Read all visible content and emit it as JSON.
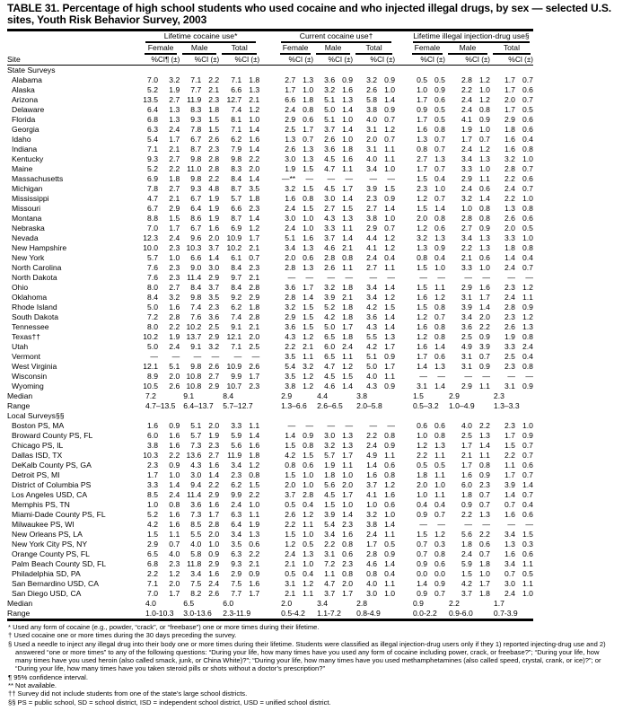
{
  "title": "TABLE 31. Percentage of high school students who used cocaine and who injected illegal drugs, by sex — selected U.S. sites, Youth Risk Behavior Survey, 2003",
  "header": {
    "site": "Site",
    "groups": [
      "Lifetime cocaine use*",
      "Current cocaine use†",
      "Lifetime illegal injection-drug use§"
    ],
    "sexes": [
      "Female",
      "Male",
      "Total"
    ],
    "pct": "%",
    "ci_first": "CI¶ (±)",
    "ci": "CI (±)"
  },
  "state_label": "State Surveys",
  "states": [
    {
      "site": "Alabama",
      "v": [
        "7.0",
        "3.2",
        "7.1",
        "2.2",
        "7.1",
        "1.8",
        "2.7",
        "1.3",
        "3.6",
        "0.9",
        "3.2",
        "0.9",
        "0.5",
        "0.5",
        "2.8",
        "1.2",
        "1.7",
        "0.7"
      ]
    },
    {
      "site": "Alaska",
      "v": [
        "5.2",
        "1.9",
        "7.7",
        "2.1",
        "6.6",
        "1.3",
        "1.7",
        "1.0",
        "3.2",
        "1.6",
        "2.6",
        "1.0",
        "1.0",
        "0.9",
        "2.2",
        "1.0",
        "1.7",
        "0.6"
      ]
    },
    {
      "site": "Arizona",
      "v": [
        "13.5",
        "2.7",
        "11.9",
        "2.3",
        "12.7",
        "2.1",
        "6.6",
        "1.8",
        "5.1",
        "1.3",
        "5.8",
        "1.4",
        "1.7",
        "0.6",
        "2.4",
        "1.2",
        "2.0",
        "0.7"
      ]
    },
    {
      "site": "Delaware",
      "v": [
        "6.4",
        "1.3",
        "8.3",
        "1.8",
        "7.4",
        "1.2",
        "2.4",
        "0.8",
        "5.0",
        "1.4",
        "3.8",
        "0.9",
        "0.9",
        "0.5",
        "2.4",
        "0.8",
        "1.7",
        "0.5"
      ]
    },
    {
      "site": "Florida",
      "v": [
        "6.8",
        "1.3",
        "9.3",
        "1.5",
        "8.1",
        "1.0",
        "2.9",
        "0.6",
        "5.1",
        "1.0",
        "4.0",
        "0.7",
        "1.7",
        "0.5",
        "4.1",
        "0.9",
        "2.9",
        "0.6"
      ]
    },
    {
      "site": "Georgia",
      "v": [
        "6.3",
        "2.4",
        "7.8",
        "1.5",
        "7.1",
        "1.4",
        "2.5",
        "1.7",
        "3.7",
        "1.4",
        "3.1",
        "1.2",
        "1.6",
        "0.8",
        "1.9",
        "1.0",
        "1.8",
        "0.6"
      ]
    },
    {
      "site": "Idaho",
      "v": [
        "5.4",
        "1.7",
        "6.7",
        "2.6",
        "6.2",
        "1.6",
        "1.3",
        "0.7",
        "2.6",
        "1.0",
        "2.0",
        "0.7",
        "1.3",
        "0.7",
        "1.7",
        "0.7",
        "1.6",
        "0.4"
      ]
    },
    {
      "site": "Indiana",
      "v": [
        "7.1",
        "2.1",
        "8.7",
        "2.3",
        "7.9",
        "1.4",
        "2.6",
        "1.3",
        "3.6",
        "1.8",
        "3.1",
        "1.1",
        "0.8",
        "0.7",
        "2.4",
        "1.2",
        "1.6",
        "0.8"
      ]
    },
    {
      "site": "Kentucky",
      "v": [
        "9.3",
        "2.7",
        "9.8",
        "2.8",
        "9.8",
        "2.2",
        "3.0",
        "1.3",
        "4.5",
        "1.6",
        "4.0",
        "1.1",
        "2.7",
        "1.3",
        "3.4",
        "1.3",
        "3.2",
        "1.0"
      ]
    },
    {
      "site": "Maine",
      "v": [
        "5.2",
        "2.2",
        "11.0",
        "2.8",
        "8.3",
        "2.0",
        "1.9",
        "1.5",
        "4.7",
        "1.1",
        "3.4",
        "1.0",
        "1.7",
        "0.7",
        "3.3",
        "1.0",
        "2.8",
        "0.7"
      ]
    },
    {
      "site": "Massachusetts",
      "v": [
        "6.9",
        "1.8",
        "9.8",
        "2.2",
        "8.4",
        "1.4",
        "—**",
        "—",
        "—",
        "—",
        "—",
        "—",
        "1.5",
        "0.4",
        "2.9",
        "1.1",
        "2.2",
        "0.6"
      ]
    },
    {
      "site": "Michigan",
      "v": [
        "7.8",
        "2.7",
        "9.3",
        "4.8",
        "8.7",
        "3.5",
        "3.2",
        "1.5",
        "4.5",
        "1.7",
        "3.9",
        "1.5",
        "2.3",
        "1.0",
        "2.4",
        "0.6",
        "2.4",
        "0.7"
      ]
    },
    {
      "site": "Mississippi",
      "v": [
        "4.7",
        "2.1",
        "6.7",
        "1.9",
        "5.7",
        "1.8",
        "1.6",
        "0.8",
        "3.0",
        "1.4",
        "2.3",
        "0.9",
        "1.2",
        "0.7",
        "3.2",
        "1.4",
        "2.2",
        "1.0"
      ]
    },
    {
      "site": "Missouri",
      "v": [
        "6.7",
        "2.9",
        "6.4",
        "1.9",
        "6.6",
        "2.3",
        "2.4",
        "1.5",
        "2.7",
        "1.5",
        "2.7",
        "1.4",
        "1.5",
        "1.4",
        "1.0",
        "0.8",
        "1.3",
        "0.8"
      ]
    },
    {
      "site": "Montana",
      "v": [
        "8.8",
        "1.5",
        "8.6",
        "1.9",
        "8.7",
        "1.4",
        "3.0",
        "1.0",
        "4.3",
        "1.3",
        "3.8",
        "1.0",
        "2.0",
        "0.8",
        "2.8",
        "0.8",
        "2.6",
        "0.6"
      ]
    },
    {
      "site": "Nebraska",
      "v": [
        "7.0",
        "1.7",
        "6.7",
        "1.6",
        "6.9",
        "1.2",
        "2.4",
        "1.0",
        "3.3",
        "1.1",
        "2.9",
        "0.7",
        "1.2",
        "0.6",
        "2.7",
        "0.9",
        "2.0",
        "0.5"
      ]
    },
    {
      "site": "Nevada",
      "v": [
        "12.3",
        "2.4",
        "9.6",
        "2.0",
        "10.9",
        "1.7",
        "5.1",
        "1.6",
        "3.7",
        "1.4",
        "4.4",
        "1.2",
        "3.2",
        "1.3",
        "3.4",
        "1.3",
        "3.3",
        "1.0"
      ]
    },
    {
      "site": "New Hampshire",
      "v": [
        "10.0",
        "2.3",
        "10.3",
        "3.7",
        "10.2",
        "2.1",
        "3.4",
        "1.3",
        "4.6",
        "2.1",
        "4.1",
        "1.2",
        "1.3",
        "0.9",
        "2.2",
        "1.3",
        "1.8",
        "0.8"
      ]
    },
    {
      "site": "New York",
      "v": [
        "5.7",
        "1.0",
        "6.6",
        "1.4",
        "6.1",
        "0.7",
        "2.0",
        "0.6",
        "2.8",
        "0.8",
        "2.4",
        "0.4",
        "0.8",
        "0.4",
        "2.1",
        "0.6",
        "1.4",
        "0.4"
      ]
    },
    {
      "site": "North Carolina",
      "v": [
        "7.6",
        "2.3",
        "9.0",
        "3.0",
        "8.4",
        "2.3",
        "2.8",
        "1.3",
        "2.6",
        "1.1",
        "2.7",
        "1.1",
        "1.5",
        "1.0",
        "3.3",
        "1.0",
        "2.4",
        "0.7"
      ]
    },
    {
      "site": "North Dakota",
      "v": [
        "7.6",
        "2.3",
        "11.4",
        "2.9",
        "9.7",
        "2.1",
        "—",
        "—",
        "—",
        "—",
        "—",
        "—",
        "—",
        "—",
        "—",
        "—",
        "—",
        "—"
      ]
    },
    {
      "site": "Ohio",
      "v": [
        "8.0",
        "2.7",
        "8.4",
        "3.7",
        "8.4",
        "2.8",
        "3.6",
        "1.7",
        "3.2",
        "1.8",
        "3.4",
        "1.4",
        "1.5",
        "1.1",
        "2.9",
        "1.6",
        "2.3",
        "1.2"
      ]
    },
    {
      "site": "Oklahoma",
      "v": [
        "8.4",
        "3.2",
        "9.8",
        "3.5",
        "9.2",
        "2.9",
        "2.8",
        "1.4",
        "3.9",
        "2.1",
        "3.4",
        "1.2",
        "1.6",
        "1.2",
        "3.1",
        "1.7",
        "2.4",
        "1.1"
      ]
    },
    {
      "site": "Rhode Island",
      "v": [
        "5.0",
        "1.6",
        "7.4",
        "2.3",
        "6.2",
        "1.8",
        "3.2",
        "1.5",
        "5.2",
        "1.8",
        "4.2",
        "1.5",
        "1.5",
        "0.8",
        "3.9",
        "1.4",
        "2.8",
        "0.9"
      ]
    },
    {
      "site": "South Dakota",
      "v": [
        "7.2",
        "2.8",
        "7.6",
        "3.6",
        "7.4",
        "2.8",
        "2.9",
        "1.5",
        "4.2",
        "1.8",
        "3.6",
        "1.4",
        "1.2",
        "0.7",
        "3.4",
        "2.0",
        "2.3",
        "1.2"
      ]
    },
    {
      "site": "Tennessee",
      "v": [
        "8.0",
        "2.2",
        "10.2",
        "2.5",
        "9.1",
        "2.1",
        "3.6",
        "1.5",
        "5.0",
        "1.7",
        "4.3",
        "1.4",
        "1.6",
        "0.8",
        "3.6",
        "2.2",
        "2.6",
        "1.3"
      ]
    },
    {
      "site": "Texas††",
      "v": [
        "10.2",
        "1.9",
        "13.7",
        "2.9",
        "12.1",
        "2.0",
        "4.3",
        "1.2",
        "6.5",
        "1.8",
        "5.5",
        "1.3",
        "1.2",
        "0.8",
        "2.5",
        "0.9",
        "1.9",
        "0.8"
      ]
    },
    {
      "site": "Utah",
      "v": [
        "5.0",
        "2.4",
        "9.1",
        "3.2",
        "7.1",
        "2.5",
        "2.2",
        "2.1",
        "6.0",
        "2.4",
        "4.2",
        "1.7",
        "1.6",
        "1.4",
        "4.9",
        "3.9",
        "3.3",
        "2.4"
      ]
    },
    {
      "site": "Vermont",
      "v": [
        "—",
        "—",
        "—",
        "—",
        "—",
        "—",
        "3.5",
        "1.1",
        "6.5",
        "1.1",
        "5.1",
        "0.9",
        "1.7",
        "0.6",
        "3.1",
        "0.7",
        "2.5",
        "0.4"
      ]
    },
    {
      "site": "West Virginia",
      "v": [
        "12.1",
        "5.1",
        "9.8",
        "2.6",
        "10.9",
        "2.6",
        "5.4",
        "3.2",
        "4.7",
        "1.2",
        "5.0",
        "1.7",
        "1.4",
        "1.3",
        "3.1",
        "0.9",
        "2.3",
        "0.8"
      ]
    },
    {
      "site": "Wisconsin",
      "v": [
        "8.9",
        "2.0",
        "10.8",
        "2.7",
        "9.9",
        "1.7",
        "3.5",
        "1.2",
        "4.5",
        "1.5",
        "4.0",
        "1.1",
        "—",
        "—",
        "—",
        "—",
        "—",
        "—"
      ]
    },
    {
      "site": "Wyoming",
      "v": [
        "10.5",
        "2.6",
        "10.8",
        "2.9",
        "10.7",
        "2.3",
        "3.8",
        "1.2",
        "4.6",
        "1.4",
        "4.3",
        "0.9",
        "3.1",
        "1.4",
        "2.9",
        "1.1",
        "3.1",
        "0.9"
      ]
    }
  ],
  "state_median": {
    "label": "Median",
    "v": [
      "7.2",
      "9.1",
      "8.4",
      "2.9",
      "4.4",
      "3.8",
      "1.5",
      "2.9",
      "2.3"
    ]
  },
  "state_range": {
    "label": "Range",
    "v": [
      "4.7–13.5",
      "6.4–13.7",
      "5.7–12.7",
      "1.3–6.6",
      "2.6–6.5",
      "2.0–5.8",
      "0.5–3.2",
      "1.0–4.9",
      "1.3–3.3"
    ]
  },
  "local_label": "Local Surveys§§",
  "locals": [
    {
      "site": "Boston PS, MA",
      "v": [
        "1.6",
        "0.9",
        "5.1",
        "2.0",
        "3.3",
        "1.1",
        "—",
        "—",
        "—",
        "—",
        "—",
        "—",
        "0.6",
        "0.6",
        "4.0",
        "2.2",
        "2.3",
        "1.0"
      ]
    },
    {
      "site": "Broward County PS, FL",
      "v": [
        "6.0",
        "1.6",
        "5.7",
        "1.9",
        "5.9",
        "1.4",
        "1.4",
        "0.9",
        "3.0",
        "1.3",
        "2.2",
        "0.8",
        "1.0",
        "0.8",
        "2.5",
        "1.3",
        "1.7",
        "0.9"
      ]
    },
    {
      "site": "Chicago PS, IL",
      "v": [
        "3.8",
        "1.6",
        "7.3",
        "2.3",
        "5.6",
        "1.6",
        "1.5",
        "0.8",
        "3.2",
        "1.3",
        "2.4",
        "0.9",
        "1.2",
        "1.3",
        "1.7",
        "1.4",
        "1.5",
        "0.7"
      ]
    },
    {
      "site": "Dallas ISD, TX",
      "v": [
        "10.3",
        "2.2",
        "13.6",
        "2.7",
        "11.9",
        "1.8",
        "4.2",
        "1.5",
        "5.7",
        "1.7",
        "4.9",
        "1.1",
        "2.2",
        "1.1",
        "2.1",
        "1.1",
        "2.2",
        "0.7"
      ]
    },
    {
      "site": "DeKalb County PS, GA",
      "v": [
        "2.3",
        "0.9",
        "4.3",
        "1.6",
        "3.4",
        "1.2",
        "0.8",
        "0.6",
        "1.9",
        "1.1",
        "1.4",
        "0.6",
        "0.5",
        "0.5",
        "1.7",
        "0.8",
        "1.1",
        "0.6"
      ]
    },
    {
      "site": "Detroit PS, MI",
      "v": [
        "1.7",
        "1.0",
        "3.0",
        "1.4",
        "2.3",
        "0.8",
        "1.5",
        "1.0",
        "1.8",
        "1.0",
        "1.6",
        "0.8",
        "1.8",
        "1.1",
        "1.6",
        "0.9",
        "1.7",
        "0.7"
      ]
    },
    {
      "site": "District of Columbia PS",
      "v": [
        "3.3",
        "1.4",
        "9.4",
        "2.2",
        "6.2",
        "1.5",
        "2.0",
        "1.0",
        "5.6",
        "2.0",
        "3.7",
        "1.2",
        "2.0",
        "1.0",
        "6.0",
        "2.3",
        "3.9",
        "1.4"
      ]
    },
    {
      "site": "Los Angeles USD, CA",
      "v": [
        "8.5",
        "2.4",
        "11.4",
        "2.9",
        "9.9",
        "2.2",
        "3.7",
        "2.8",
        "4.5",
        "1.7",
        "4.1",
        "1.6",
        "1.0",
        "1.1",
        "1.8",
        "0.7",
        "1.4",
        "0.7"
      ]
    },
    {
      "site": "Memphis PS, TN",
      "v": [
        "1.0",
        "0.8",
        "3.6",
        "1.6",
        "2.4",
        "1.0",
        "0.5",
        "0.4",
        "1.5",
        "1.0",
        "1.0",
        "0.6",
        "0.4",
        "0.4",
        "0.9",
        "0.7",
        "0.7",
        "0.4"
      ]
    },
    {
      "site": "Miami-Dade County PS, FL",
      "v": [
        "5.2",
        "1.6",
        "7.3",
        "1.7",
        "6.3",
        "1.1",
        "2.6",
        "1.2",
        "3.9",
        "1.4",
        "3.2",
        "1.0",
        "0.9",
        "0.7",
        "2.2",
        "1.3",
        "1.6",
        "0.6"
      ]
    },
    {
      "site": "Milwaukee PS, WI",
      "v": [
        "4.2",
        "1.6",
        "8.5",
        "2.8",
        "6.4",
        "1.9",
        "2.2",
        "1.1",
        "5.4",
        "2.3",
        "3.8",
        "1.4",
        "—",
        "—",
        "—",
        "—",
        "—",
        "—"
      ]
    },
    {
      "site": "New Orleans PS, LA",
      "v": [
        "1.5",
        "1.1",
        "5.5",
        "2.0",
        "3.4",
        "1.3",
        "1.5",
        "1.0",
        "3.4",
        "1.6",
        "2.4",
        "1.1",
        "1.5",
        "1.2",
        "5.6",
        "2.2",
        "3.4",
        "1.5"
      ]
    },
    {
      "site": "New York City PS, NY",
      "v": [
        "2.9",
        "0.7",
        "4.0",
        "1.0",
        "3.5",
        "0.6",
        "1.2",
        "0.5",
        "2.2",
        "0.8",
        "1.7",
        "0.5",
        "0.7",
        "0.3",
        "1.8",
        "0.6",
        "1.3",
        "0.3"
      ]
    },
    {
      "site": "Orange County PS, FL",
      "v": [
        "6.5",
        "4.0",
        "5.8",
        "0.9",
        "6.3",
        "2.2",
        "2.4",
        "1.3",
        "3.1",
        "0.6",
        "2.8",
        "0.9",
        "0.7",
        "0.8",
        "2.4",
        "0.7",
        "1.6",
        "0.6"
      ]
    },
    {
      "site": "Palm Beach County SD, FL",
      "v": [
        "6.8",
        "2.3",
        "11.8",
        "2.9",
        "9.3",
        "2.1",
        "2.1",
        "1.0",
        "7.2",
        "2.3",
        "4.6",
        "1.4",
        "0.9",
        "0.6",
        "5.9",
        "1.8",
        "3.4",
        "1.1"
      ]
    },
    {
      "site": "Philadelphia SD, PA",
      "v": [
        "2.2",
        "1.2",
        "3.4",
        "1.6",
        "2.9",
        "0.9",
        "0.5",
        "0.4",
        "1.1",
        "0.8",
        "0.8",
        "0.4",
        "0.0",
        "0.0",
        "1.5",
        "1.0",
        "0.7",
        "0.5"
      ]
    },
    {
      "site": "San Bernardino USD, CA",
      "v": [
        "7.1",
        "2.0",
        "7.5",
        "2.4",
        "7.5",
        "1.6",
        "3.1",
        "1.2",
        "4.7",
        "2.0",
        "4.0",
        "1.1",
        "1.4",
        "0.9",
        "4.2",
        "1.7",
        "3.0",
        "1.1"
      ]
    },
    {
      "site": "San Diego USD, CA",
      "v": [
        "7.0",
        "1.7",
        "8.2",
        "2.6",
        "7.7",
        "1.7",
        "2.1",
        "1.1",
        "3.7",
        "1.7",
        "3.0",
        "1.0",
        "0.9",
        "0.7",
        "3.7",
        "1.8",
        "2.4",
        "1.0"
      ]
    }
  ],
  "local_median": {
    "label": "Median",
    "v": [
      "4.0",
      "6.5",
      "6.0",
      "2.0",
      "3.4",
      "2.8",
      "0.9",
      "2.2",
      "1.7"
    ]
  },
  "local_range": {
    "label": "Range",
    "v": [
      "1.0-10.3",
      "3.0-13.6",
      "2.3-11.9",
      "0.5-4.2",
      "1.1-7.2",
      "0.8-4.9",
      "0.0-2.2",
      "0.9-6.0",
      "0.7-3.9"
    ]
  },
  "footnotes": [
    "* Used any form of cocaine (e.g., powder, “crack”, or “freebase”) one or more times during their lifetime.",
    "† Used cocaine one or more times during the 30 days preceding the survey.",
    "§ Used a needle to inject any illegal drug into their body one or more times during their lifetime. Students were classified as illegal injection-drug users only if they 1) reported injecting-drug use and 2) answered “one or more times” to any of the following questions: “During your life, how many times have you used any form of cocaine including power, crack, or freebase?”; “During your life, how many times have you used heroin (also called smack, junk, or China White)?”; “During your life, how many times have you used methamphetamines (also called speed, crystal, crank, or ice)?”; or “During your life, how many times have you taken steroid pills or shots without a doctor’s prescription?”",
    "¶ 95% confidence interval.",
    "** Not available.",
    "†† Survey did not include students from one of the state’s large school districts.",
    "§§ PS = public school, SD = school district, ISD = independent school district, USD = unified school district."
  ]
}
